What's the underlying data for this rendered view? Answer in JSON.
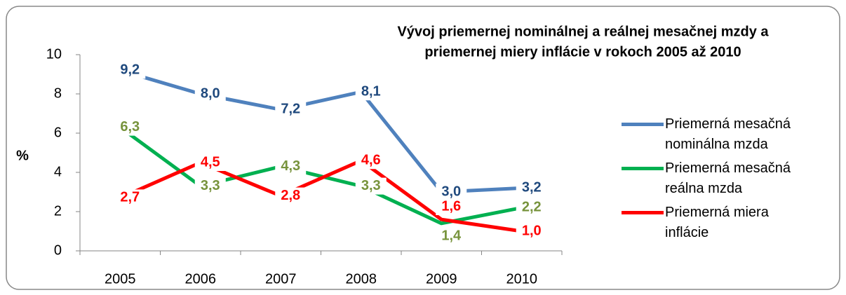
{
  "chart_data": {
    "type": "line",
    "title": [
      "Vývoj priemernej nominálnej a reálnej mesačnej mzdy a",
      "priemernej miery inflácie v rokoch 2005 až 2010"
    ],
    "y_label": "%",
    "categories": [
      "2005",
      "2006",
      "2007",
      "2008",
      "2009",
      "2010"
    ],
    "ylim": [
      0,
      10
    ],
    "yticks": [
      0,
      2,
      4,
      6,
      8,
      10
    ],
    "legend": "right",
    "series": [
      {
        "name": "Priemerná mesačná nominálna mzda",
        "color": "#4f81bd",
        "label_color": "#1f497d",
        "values": [
          9.2,
          8.0,
          7.2,
          8.1,
          3.0,
          3.2
        ],
        "value_labels": [
          "9,2",
          "8,0",
          "7,2",
          "8,1",
          "3,0",
          "3,2"
        ]
      },
      {
        "name": "Priemerná mesačná reálna mzda",
        "color": "#00b050",
        "label_color": "#77933c",
        "values": [
          6.3,
          3.3,
          4.3,
          3.3,
          1.4,
          2.2
        ],
        "value_labels": [
          "6,3",
          "3,3",
          "4,3",
          "3,3",
          "1,4",
          "2,2"
        ]
      },
      {
        "name": "Priemerná miera inflácie",
        "color": "#ff0000",
        "label_color": "#ff0000",
        "values": [
          2.7,
          4.5,
          2.8,
          4.6,
          1.6,
          1.0
        ],
        "value_labels": [
          "2,7",
          "4,5",
          "2,8",
          "4,6",
          "1,6",
          "1,0"
        ]
      }
    ]
  }
}
